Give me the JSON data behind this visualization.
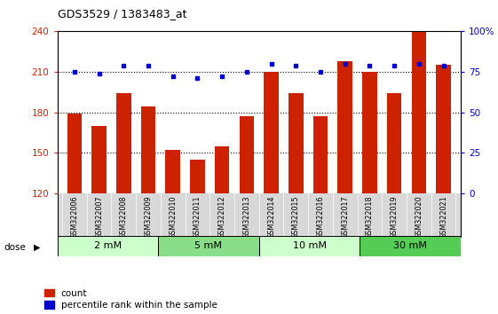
{
  "title": "GDS3529 / 1383483_at",
  "samples": [
    "GSM322006",
    "GSM322007",
    "GSM322008",
    "GSM322009",
    "GSM322010",
    "GSM322011",
    "GSM322012",
    "GSM322013",
    "GSM322014",
    "GSM322015",
    "GSM322016",
    "GSM322017",
    "GSM322018",
    "GSM322019",
    "GSM322020",
    "GSM322021"
  ],
  "bar_values": [
    179,
    170,
    194,
    184,
    152,
    145,
    155,
    177,
    210,
    194,
    177,
    218,
    210,
    194,
    240,
    215
  ],
  "percentile_values": [
    75,
    74,
    79,
    79,
    72,
    71,
    72,
    75,
    80,
    79,
    75,
    80,
    79,
    79,
    80,
    79
  ],
  "bar_color": "#cc2200",
  "dot_color": "#0000cc",
  "ylim_left": [
    120,
    240
  ],
  "ylim_right": [
    0,
    100
  ],
  "yticks_left": [
    120,
    150,
    180,
    210,
    240
  ],
  "yticks_right": [
    0,
    25,
    50,
    75,
    100
  ],
  "yticklabels_right": [
    "0",
    "25",
    "50",
    "75",
    "100%"
  ],
  "group_labels": [
    "2 mM",
    "5 mM",
    "10 mM",
    "30 mM"
  ],
  "group_starts": [
    0,
    4,
    8,
    12
  ],
  "group_ends": [
    4,
    8,
    12,
    16
  ],
  "group_colors": [
    "#ccffcc",
    "#88dd88",
    "#ccffcc",
    "#55cc55"
  ],
  "dose_label": "dose",
  "legend_count_label": "count",
  "legend_pct_label": "percentile rank within the sample",
  "bar_width": 0.6,
  "xtick_bg": "#d8d8d8",
  "plot_bg": "#ffffff",
  "dotted_lines": [
    150,
    180,
    210
  ]
}
